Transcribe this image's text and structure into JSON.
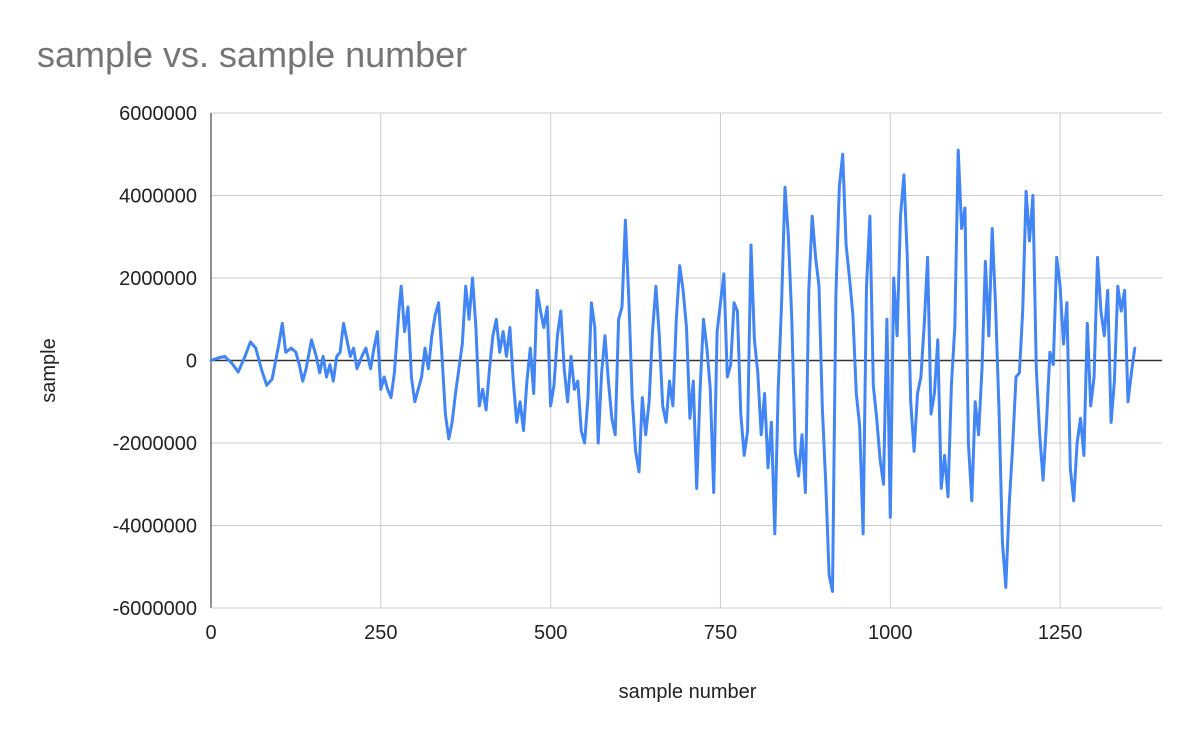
{
  "chart_data": {
    "type": "line",
    "title": "sample vs. sample number",
    "xlabel": "sample number",
    "ylabel": "sample",
    "xlim": [
      0,
      1400
    ],
    "ylim": [
      -6000000,
      6000000
    ],
    "x_ticks": [
      0,
      250,
      500,
      750,
      1000,
      1250
    ],
    "y_ticks": [
      -6000000,
      -4000000,
      -2000000,
      0,
      2000000,
      4000000,
      6000000
    ],
    "grid": true,
    "legend": "none",
    "series": [
      {
        "color": "#4285f4",
        "points": [
          [
            0,
            0
          ],
          [
            10,
            60000
          ],
          [
            20,
            100000
          ],
          [
            30,
            -50000
          ],
          [
            40,
            -280000
          ],
          [
            50,
            100000
          ],
          [
            58,
            450000
          ],
          [
            66,
            300000
          ],
          [
            74,
            -200000
          ],
          [
            82,
            -600000
          ],
          [
            90,
            -450000
          ],
          [
            100,
            400000
          ],
          [
            105,
            900000
          ],
          [
            110,
            200000
          ],
          [
            118,
            300000
          ],
          [
            125,
            200000
          ],
          [
            130,
            -100000
          ],
          [
            135,
            -500000
          ],
          [
            140,
            -200000
          ],
          [
            148,
            500000
          ],
          [
            155,
            100000
          ],
          [
            160,
            -300000
          ],
          [
            165,
            100000
          ],
          [
            170,
            -400000
          ],
          [
            175,
            -100000
          ],
          [
            180,
            -500000
          ],
          [
            185,
            100000
          ],
          [
            190,
            200000
          ],
          [
            195,
            900000
          ],
          [
            200,
            500000
          ],
          [
            205,
            100000
          ],
          [
            210,
            300000
          ],
          [
            215,
            -200000
          ],
          [
            222,
            100000
          ],
          [
            228,
            300000
          ],
          [
            235,
            -200000
          ],
          [
            240,
            300000
          ],
          [
            245,
            700000
          ],
          [
            250,
            -700000
          ],
          [
            255,
            -400000
          ],
          [
            260,
            -700000
          ],
          [
            265,
            -900000
          ],
          [
            270,
            -300000
          ],
          [
            277,
            1300000
          ],
          [
            280,
            1800000
          ],
          [
            285,
            700000
          ],
          [
            290,
            1300000
          ],
          [
            295,
            -400000
          ],
          [
            300,
            -1000000
          ],
          [
            305,
            -700000
          ],
          [
            310,
            -400000
          ],
          [
            315,
            300000
          ],
          [
            320,
            -200000
          ],
          [
            325,
            600000
          ],
          [
            330,
            1100000
          ],
          [
            335,
            1400000
          ],
          [
            340,
            100000
          ],
          [
            345,
            -1300000
          ],
          [
            350,
            -1900000
          ],
          [
            355,
            -1500000
          ],
          [
            360,
            -800000
          ],
          [
            365,
            -200000
          ],
          [
            370,
            400000
          ],
          [
            375,
            1800000
          ],
          [
            380,
            1000000
          ],
          [
            385,
            2000000
          ],
          [
            390,
            800000
          ],
          [
            395,
            -1100000
          ],
          [
            400,
            -700000
          ],
          [
            405,
            -1200000
          ],
          [
            410,
            -200000
          ],
          [
            415,
            600000
          ],
          [
            420,
            1000000
          ],
          [
            425,
            200000
          ],
          [
            430,
            700000
          ],
          [
            435,
            100000
          ],
          [
            440,
            800000
          ],
          [
            445,
            -500000
          ],
          [
            450,
            -1500000
          ],
          [
            455,
            -1000000
          ],
          [
            460,
            -1700000
          ],
          [
            465,
            -500000
          ],
          [
            470,
            300000
          ],
          [
            475,
            -800000
          ],
          [
            480,
            1700000
          ],
          [
            485,
            1200000
          ],
          [
            490,
            800000
          ],
          [
            495,
            1300000
          ],
          [
            500,
            -1100000
          ],
          [
            505,
            -600000
          ],
          [
            510,
            600000
          ],
          [
            515,
            1200000
          ],
          [
            520,
            -200000
          ],
          [
            525,
            -1000000
          ],
          [
            530,
            100000
          ],
          [
            535,
            -700000
          ],
          [
            540,
            -500000
          ],
          [
            545,
            -1700000
          ],
          [
            550,
            -2000000
          ],
          [
            555,
            -900000
          ],
          [
            560,
            1400000
          ],
          [
            565,
            800000
          ],
          [
            570,
            -2000000
          ],
          [
            575,
            -300000
          ],
          [
            580,
            600000
          ],
          [
            585,
            -500000
          ],
          [
            590,
            -1400000
          ],
          [
            595,
            -1800000
          ],
          [
            600,
            1000000
          ],
          [
            605,
            1300000
          ],
          [
            610,
            3400000
          ],
          [
            615,
            1500000
          ],
          [
            620,
            -900000
          ],
          [
            625,
            -2200000
          ],
          [
            630,
            -2700000
          ],
          [
            635,
            -900000
          ],
          [
            640,
            -1800000
          ],
          [
            645,
            -1000000
          ],
          [
            650,
            700000
          ],
          [
            655,
            1800000
          ],
          [
            660,
            600000
          ],
          [
            665,
            -1100000
          ],
          [
            670,
            -1500000
          ],
          [
            675,
            -500000
          ],
          [
            680,
            -1100000
          ],
          [
            685,
            1000000
          ],
          [
            690,
            2300000
          ],
          [
            695,
            1700000
          ],
          [
            700,
            800000
          ],
          [
            705,
            -1400000
          ],
          [
            710,
            -500000
          ],
          [
            715,
            -3100000
          ],
          [
            720,
            -700000
          ],
          [
            725,
            1000000
          ],
          [
            730,
            300000
          ],
          [
            735,
            -700000
          ],
          [
            740,
            -3200000
          ],
          [
            745,
            700000
          ],
          [
            750,
            1400000
          ],
          [
            755,
            2100000
          ],
          [
            760,
            -400000
          ],
          [
            765,
            -100000
          ],
          [
            770,
            1400000
          ],
          [
            775,
            1200000
          ],
          [
            780,
            -1300000
          ],
          [
            785,
            -2300000
          ],
          [
            790,
            -1700000
          ],
          [
            795,
            2800000
          ],
          [
            800,
            500000
          ],
          [
            805,
            -300000
          ],
          [
            810,
            -1800000
          ],
          [
            815,
            -800000
          ],
          [
            820,
            -2600000
          ],
          [
            825,
            -1500000
          ],
          [
            830,
            -4200000
          ],
          [
            835,
            -700000
          ],
          [
            840,
            1400000
          ],
          [
            845,
            4200000
          ],
          [
            850,
            3000000
          ],
          [
            855,
            1000000
          ],
          [
            860,
            -2200000
          ],
          [
            865,
            -2800000
          ],
          [
            870,
            -1800000
          ],
          [
            875,
            -3200000
          ],
          [
            880,
            1700000
          ],
          [
            885,
            3500000
          ],
          [
            890,
            2500000
          ],
          [
            895,
            1800000
          ],
          [
            900,
            -1200000
          ],
          [
            905,
            -3000000
          ],
          [
            910,
            -5200000
          ],
          [
            915,
            -5600000
          ],
          [
            920,
            1600000
          ],
          [
            925,
            4200000
          ],
          [
            930,
            5000000
          ],
          [
            935,
            2800000
          ],
          [
            940,
            2000000
          ],
          [
            945,
            1100000
          ],
          [
            950,
            -800000
          ],
          [
            955,
            -1600000
          ],
          [
            960,
            -4200000
          ],
          [
            965,
            1800000
          ],
          [
            970,
            3500000
          ],
          [
            975,
            -600000
          ],
          [
            980,
            -1400000
          ],
          [
            985,
            -2400000
          ],
          [
            990,
            -3000000
          ],
          [
            995,
            1000000
          ],
          [
            1000,
            -3800000
          ],
          [
            1005,
            2000000
          ],
          [
            1010,
            600000
          ],
          [
            1015,
            3500000
          ],
          [
            1020,
            4500000
          ],
          [
            1025,
            2500000
          ],
          [
            1030,
            -1000000
          ],
          [
            1035,
            -2200000
          ],
          [
            1040,
            -800000
          ],
          [
            1045,
            -400000
          ],
          [
            1050,
            900000
          ],
          [
            1055,
            2500000
          ],
          [
            1060,
            -1300000
          ],
          [
            1065,
            -800000
          ],
          [
            1070,
            500000
          ],
          [
            1075,
            -3100000
          ],
          [
            1080,
            -2300000
          ],
          [
            1085,
            -3300000
          ],
          [
            1090,
            -600000
          ],
          [
            1095,
            800000
          ],
          [
            1100,
            5100000
          ],
          [
            1105,
            3200000
          ],
          [
            1110,
            3700000
          ],
          [
            1115,
            -2000000
          ],
          [
            1120,
            -3400000
          ],
          [
            1125,
            -1000000
          ],
          [
            1130,
            -1800000
          ],
          [
            1135,
            -200000
          ],
          [
            1140,
            2400000
          ],
          [
            1145,
            600000
          ],
          [
            1150,
            3200000
          ],
          [
            1155,
            1300000
          ],
          [
            1160,
            -1200000
          ],
          [
            1165,
            -4400000
          ],
          [
            1170,
            -5500000
          ],
          [
            1175,
            -3500000
          ],
          [
            1180,
            -2100000
          ],
          [
            1185,
            -400000
          ],
          [
            1190,
            -300000
          ],
          [
            1195,
            1200000
          ],
          [
            1200,
            4100000
          ],
          [
            1205,
            2900000
          ],
          [
            1210,
            4000000
          ],
          [
            1215,
            -200000
          ],
          [
            1220,
            -1800000
          ],
          [
            1225,
            -2900000
          ],
          [
            1230,
            -1500000
          ],
          [
            1235,
            200000
          ],
          [
            1240,
            -100000
          ],
          [
            1245,
            2500000
          ],
          [
            1250,
            1800000
          ],
          [
            1255,
            400000
          ],
          [
            1260,
            1400000
          ],
          [
            1265,
            -2600000
          ],
          [
            1270,
            -3400000
          ],
          [
            1275,
            -2000000
          ],
          [
            1280,
            -1400000
          ],
          [
            1285,
            -2300000
          ],
          [
            1290,
            900000
          ],
          [
            1295,
            -1100000
          ],
          [
            1300,
            -400000
          ],
          [
            1305,
            2500000
          ],
          [
            1310,
            1200000
          ],
          [
            1315,
            600000
          ],
          [
            1320,
            1700000
          ],
          [
            1325,
            -1500000
          ],
          [
            1330,
            -500000
          ],
          [
            1335,
            1800000
          ],
          [
            1340,
            1200000
          ],
          [
            1345,
            1700000
          ],
          [
            1350,
            -1000000
          ],
          [
            1355,
            -300000
          ],
          [
            1360,
            300000
          ]
        ]
      }
    ]
  }
}
